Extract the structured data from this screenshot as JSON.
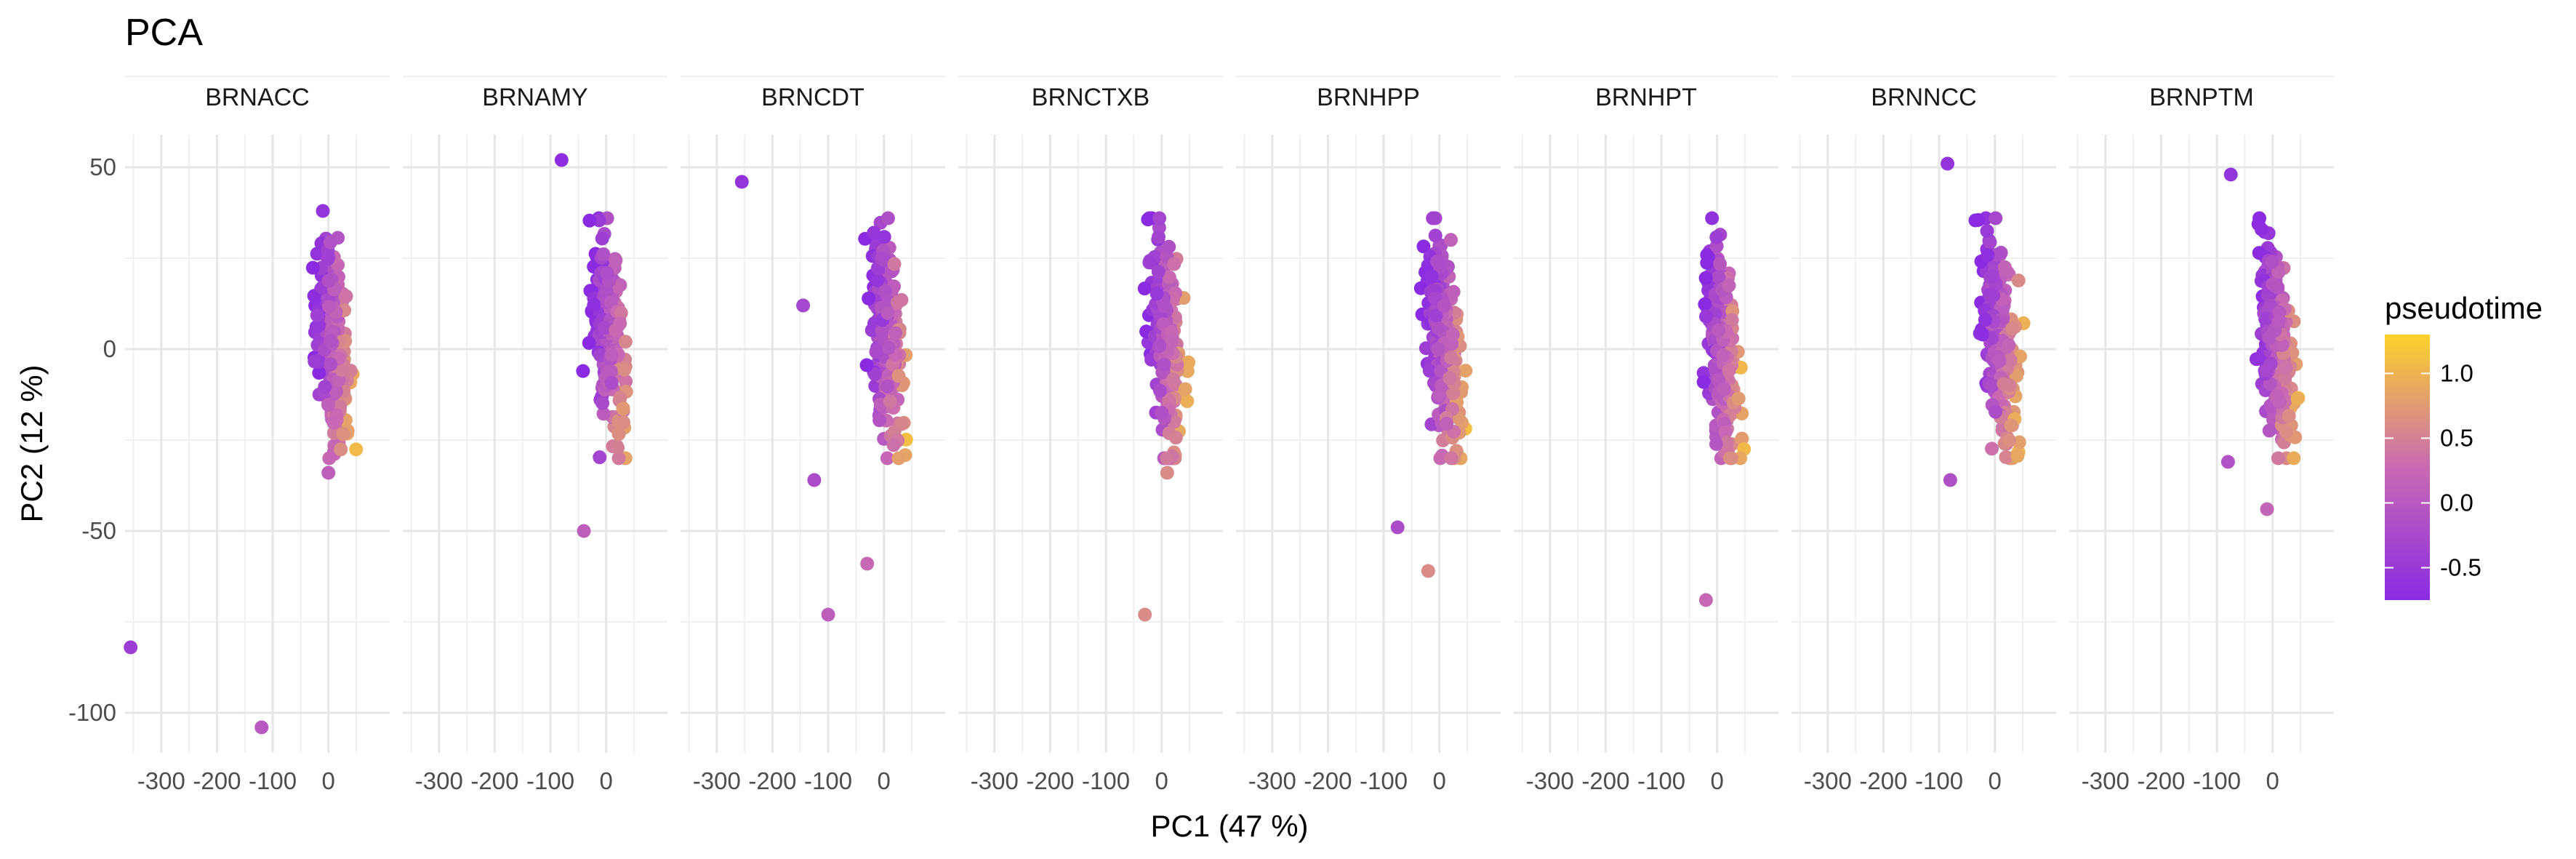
{
  "chart_data": {
    "type": "scatter",
    "title": "PCA",
    "xlabel": "PC1 (47 %)",
    "ylabel": "PC2 (12 %)",
    "xlim": [
      -365,
      110
    ],
    "ylim": [
      -111,
      59
    ],
    "x_ticks": [
      -300,
      -200,
      -100,
      0
    ],
    "x_tick_labels": [
      "-300",
      "-200",
      "-100",
      "0"
    ],
    "y_ticks": [
      50,
      0,
      -50,
      -100
    ],
    "y_tick_labels": [
      "50",
      "0",
      "-50",
      "-100"
    ],
    "grid": true,
    "facets": [
      "BRNACC",
      "BRNAMY",
      "BRNCDT",
      "BRNCTXB",
      "BRNHPP",
      "BRNHPT",
      "BRNNCC",
      "BRNPTM"
    ],
    "color_scale": {
      "name": "pseudotime",
      "min": -0.75,
      "max": 1.3,
      "ticks": [
        1.0,
        0.5,
        0.0,
        -0.5
      ],
      "tick_labels": [
        "1.0",
        "0.5",
        "0.0",
        "-0.5"
      ],
      "low_color": "#8a2be2",
      "mid_color": "#c86ab2",
      "high_color": "#fdd22a",
      "legend_position": "right"
    },
    "notable_points": [
      {
        "facet": "BRNACC",
        "x": -355,
        "y": -82,
        "pseudotime": -0.45
      },
      {
        "facet": "BRNACC",
        "x": -120,
        "y": -104,
        "pseudotime": 0.0
      },
      {
        "facet": "BRNACC",
        "x": -10,
        "y": 38,
        "pseudotime": -0.6
      },
      {
        "facet": "BRNACC",
        "x": 0,
        "y": -34,
        "pseudotime": 0.1
      },
      {
        "facet": "BRNAMY",
        "x": -80,
        "y": 52,
        "pseudotime": -0.7
      },
      {
        "facet": "BRNAMY",
        "x": -40,
        "y": -50,
        "pseudotime": 0.1
      },
      {
        "facet": "BRNCDT",
        "x": -255,
        "y": 46,
        "pseudotime": -0.6
      },
      {
        "facet": "BRNCDT",
        "x": -145,
        "y": 12,
        "pseudotime": -0.3
      },
      {
        "facet": "BRNCDT",
        "x": -125,
        "y": -36,
        "pseudotime": -0.2
      },
      {
        "facet": "BRNCDT",
        "x": -100,
        "y": -73,
        "pseudotime": 0.1
      },
      {
        "facet": "BRNCDT",
        "x": -30,
        "y": -59,
        "pseudotime": 0.25
      },
      {
        "facet": "BRNCTXB",
        "x": -30,
        "y": -73,
        "pseudotime": 0.6
      },
      {
        "facet": "BRNCTXB",
        "x": 10,
        "y": -34,
        "pseudotime": 0.6
      },
      {
        "facet": "BRNHPP",
        "x": -75,
        "y": -49,
        "pseudotime": -0.2
      },
      {
        "facet": "BRNHPP",
        "x": -20,
        "y": -61,
        "pseudotime": 0.6
      },
      {
        "facet": "BRNHPT",
        "x": -20,
        "y": -69,
        "pseudotime": 0.25
      },
      {
        "facet": "BRNNCC",
        "x": -85,
        "y": 51,
        "pseudotime": -0.6
      },
      {
        "facet": "BRNNCC",
        "x": -80,
        "y": -36,
        "pseudotime": -0.15
      },
      {
        "facet": "BRNPTM",
        "x": -75,
        "y": 48,
        "pseudotime": -0.6
      },
      {
        "facet": "BRNPTM",
        "x": -80,
        "y": -31,
        "pseudotime": -0.1
      },
      {
        "facet": "BRNPTM",
        "x": -10,
        "y": -44,
        "pseudotime": 0.2
      }
    ]
  }
}
